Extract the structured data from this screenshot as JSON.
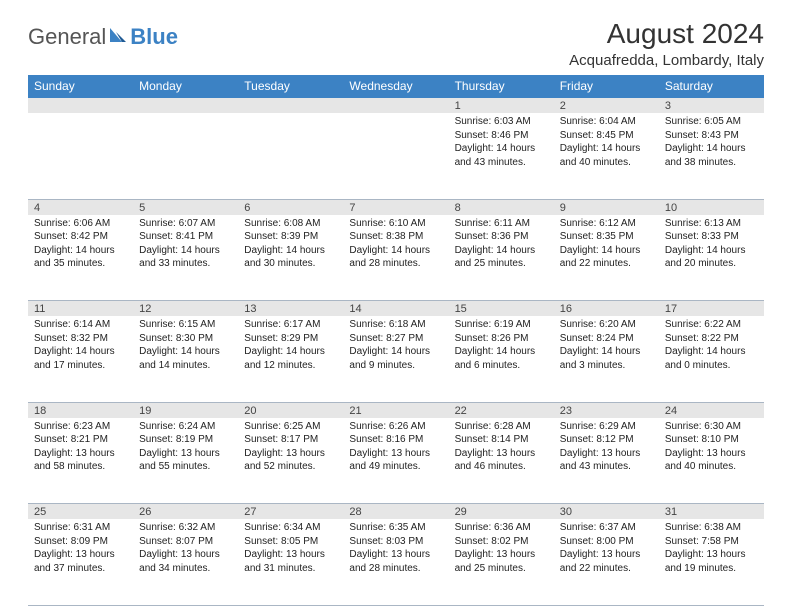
{
  "logo": {
    "text1": "General",
    "text2": "Blue",
    "brand_color": "#3c82c4"
  },
  "title": "August 2024",
  "location": "Acquafredda, Lombardy, Italy",
  "header_bg": "#3c82c4",
  "header_fg": "#ffffff",
  "daynum_bg": "#e6e6e6",
  "border_color": "#aab6c4",
  "weekdays": [
    "Sunday",
    "Monday",
    "Tuesday",
    "Wednesday",
    "Thursday",
    "Friday",
    "Saturday"
  ],
  "weeks": [
    [
      null,
      null,
      null,
      null,
      {
        "n": "1",
        "sr": "6:03 AM",
        "ss": "8:46 PM",
        "dl": "14 hours and 43 minutes."
      },
      {
        "n": "2",
        "sr": "6:04 AM",
        "ss": "8:45 PM",
        "dl": "14 hours and 40 minutes."
      },
      {
        "n": "3",
        "sr": "6:05 AM",
        "ss": "8:43 PM",
        "dl": "14 hours and 38 minutes."
      }
    ],
    [
      {
        "n": "4",
        "sr": "6:06 AM",
        "ss": "8:42 PM",
        "dl": "14 hours and 35 minutes."
      },
      {
        "n": "5",
        "sr": "6:07 AM",
        "ss": "8:41 PM",
        "dl": "14 hours and 33 minutes."
      },
      {
        "n": "6",
        "sr": "6:08 AM",
        "ss": "8:39 PM",
        "dl": "14 hours and 30 minutes."
      },
      {
        "n": "7",
        "sr": "6:10 AM",
        "ss": "8:38 PM",
        "dl": "14 hours and 28 minutes."
      },
      {
        "n": "8",
        "sr": "6:11 AM",
        "ss": "8:36 PM",
        "dl": "14 hours and 25 minutes."
      },
      {
        "n": "9",
        "sr": "6:12 AM",
        "ss": "8:35 PM",
        "dl": "14 hours and 22 minutes."
      },
      {
        "n": "10",
        "sr": "6:13 AM",
        "ss": "8:33 PM",
        "dl": "14 hours and 20 minutes."
      }
    ],
    [
      {
        "n": "11",
        "sr": "6:14 AM",
        "ss": "8:32 PM",
        "dl": "14 hours and 17 minutes."
      },
      {
        "n": "12",
        "sr": "6:15 AM",
        "ss": "8:30 PM",
        "dl": "14 hours and 14 minutes."
      },
      {
        "n": "13",
        "sr": "6:17 AM",
        "ss": "8:29 PM",
        "dl": "14 hours and 12 minutes."
      },
      {
        "n": "14",
        "sr": "6:18 AM",
        "ss": "8:27 PM",
        "dl": "14 hours and 9 minutes."
      },
      {
        "n": "15",
        "sr": "6:19 AM",
        "ss": "8:26 PM",
        "dl": "14 hours and 6 minutes."
      },
      {
        "n": "16",
        "sr": "6:20 AM",
        "ss": "8:24 PM",
        "dl": "14 hours and 3 minutes."
      },
      {
        "n": "17",
        "sr": "6:22 AM",
        "ss": "8:22 PM",
        "dl": "14 hours and 0 minutes."
      }
    ],
    [
      {
        "n": "18",
        "sr": "6:23 AM",
        "ss": "8:21 PM",
        "dl": "13 hours and 58 minutes."
      },
      {
        "n": "19",
        "sr": "6:24 AM",
        "ss": "8:19 PM",
        "dl": "13 hours and 55 minutes."
      },
      {
        "n": "20",
        "sr": "6:25 AM",
        "ss": "8:17 PM",
        "dl": "13 hours and 52 minutes."
      },
      {
        "n": "21",
        "sr": "6:26 AM",
        "ss": "8:16 PM",
        "dl": "13 hours and 49 minutes."
      },
      {
        "n": "22",
        "sr": "6:28 AM",
        "ss": "8:14 PM",
        "dl": "13 hours and 46 minutes."
      },
      {
        "n": "23",
        "sr": "6:29 AM",
        "ss": "8:12 PM",
        "dl": "13 hours and 43 minutes."
      },
      {
        "n": "24",
        "sr": "6:30 AM",
        "ss": "8:10 PM",
        "dl": "13 hours and 40 minutes."
      }
    ],
    [
      {
        "n": "25",
        "sr": "6:31 AM",
        "ss": "8:09 PM",
        "dl": "13 hours and 37 minutes."
      },
      {
        "n": "26",
        "sr": "6:32 AM",
        "ss": "8:07 PM",
        "dl": "13 hours and 34 minutes."
      },
      {
        "n": "27",
        "sr": "6:34 AM",
        "ss": "8:05 PM",
        "dl": "13 hours and 31 minutes."
      },
      {
        "n": "28",
        "sr": "6:35 AM",
        "ss": "8:03 PM",
        "dl": "13 hours and 28 minutes."
      },
      {
        "n": "29",
        "sr": "6:36 AM",
        "ss": "8:02 PM",
        "dl": "13 hours and 25 minutes."
      },
      {
        "n": "30",
        "sr": "6:37 AM",
        "ss": "8:00 PM",
        "dl": "13 hours and 22 minutes."
      },
      {
        "n": "31",
        "sr": "6:38 AM",
        "ss": "7:58 PM",
        "dl": "13 hours and 19 minutes."
      }
    ]
  ],
  "labels": {
    "sunrise": "Sunrise: ",
    "sunset": "Sunset: ",
    "daylight": "Daylight: "
  }
}
